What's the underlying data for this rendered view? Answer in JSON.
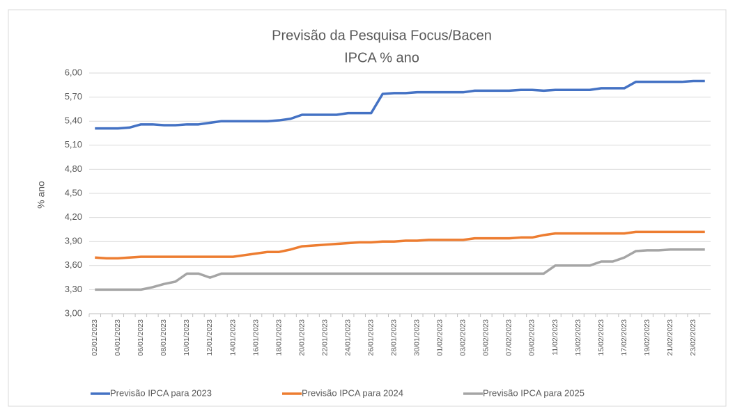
{
  "chart_data": {
    "type": "line",
    "title": "Previsão da Pesquisa Focus/Bacen",
    "subtitle": "IPCA % ano",
    "y_label": "% ano",
    "categories": [
      "02/01/2023",
      null,
      "04/01/2023",
      null,
      "06/01/2023",
      null,
      "08/01/2023",
      null,
      "10/01/2023",
      null,
      "12/01/2023",
      null,
      "14/01/2023",
      null,
      "16/01/2023",
      null,
      "18/01/2023",
      null,
      "20/01/2023",
      null,
      "22/01/2023",
      null,
      "24/01/2023",
      null,
      "26/01/2023",
      null,
      "28/01/2023",
      null,
      "30/01/2023",
      null,
      "01/02/2023",
      null,
      "03/02/2023",
      null,
      "05/02/2023",
      null,
      "07/02/2023",
      null,
      "09/02/2023",
      null,
      "11/02/2023",
      null,
      "13/02/2023",
      null,
      "15/02/2023",
      null,
      "17/02/2023",
      null,
      "19/02/2023",
      null,
      "21/02/2023",
      null,
      "23/02/2023",
      null
    ],
    "series": [
      {
        "name": "Previsão IPCA para 2023",
        "color": "#4472c4",
        "values": [
          5.31,
          5.31,
          5.31,
          5.32,
          5.36,
          5.36,
          5.35,
          5.35,
          5.36,
          5.36,
          5.38,
          5.4,
          5.4,
          5.4,
          5.4,
          5.4,
          5.41,
          5.43,
          5.48,
          5.48,
          5.48,
          5.48,
          5.5,
          5.5,
          5.5,
          5.74,
          5.75,
          5.75,
          5.76,
          5.76,
          5.76,
          5.76,
          5.76,
          5.78,
          5.78,
          5.78,
          5.78,
          5.79,
          5.79,
          5.78,
          5.79,
          5.79,
          5.79,
          5.79,
          5.81,
          5.81,
          5.81,
          5.89,
          5.89,
          5.89,
          5.89,
          5.89,
          5.9,
          5.9
        ]
      },
      {
        "name": "Previsão IPCA para 2024",
        "color": "#ed7d31",
        "values": [
          3.7,
          3.69,
          3.69,
          3.7,
          3.71,
          3.71,
          3.71,
          3.71,
          3.71,
          3.71,
          3.71,
          3.71,
          3.71,
          3.73,
          3.75,
          3.77,
          3.77,
          3.8,
          3.84,
          3.85,
          3.86,
          3.87,
          3.88,
          3.89,
          3.89,
          3.9,
          3.9,
          3.91,
          3.91,
          3.92,
          3.92,
          3.92,
          3.92,
          3.94,
          3.94,
          3.94,
          3.94,
          3.95,
          3.95,
          3.98,
          4.0,
          4.0,
          4.0,
          4.0,
          4.0,
          4.0,
          4.0,
          4.02,
          4.02,
          4.02,
          4.02,
          4.02,
          4.02,
          4.02
        ]
      },
      {
        "name": "Previsão IPCA para 2025",
        "color": "#a5a5a5",
        "values": [
          3.3,
          3.3,
          3.3,
          3.3,
          3.3,
          3.33,
          3.37,
          3.4,
          3.5,
          3.5,
          3.45,
          3.5,
          3.5,
          3.5,
          3.5,
          3.5,
          3.5,
          3.5,
          3.5,
          3.5,
          3.5,
          3.5,
          3.5,
          3.5,
          3.5,
          3.5,
          3.5,
          3.5,
          3.5,
          3.5,
          3.5,
          3.5,
          3.5,
          3.5,
          3.5,
          3.5,
          3.5,
          3.5,
          3.5,
          3.5,
          3.6,
          3.6,
          3.6,
          3.6,
          3.65,
          3.65,
          3.7,
          3.78,
          3.79,
          3.79,
          3.8,
          3.8,
          3.8,
          3.8
        ]
      }
    ],
    "ylim": [
      3,
      6
    ],
    "yticks": [
      {
        "value": 3,
        "label": "3,00"
      },
      {
        "value": 3.3,
        "label": "3,30"
      },
      {
        "value": 3.6,
        "label": "3,60"
      },
      {
        "value": 3.9,
        "label": "3,90"
      },
      {
        "value": 4.2,
        "label": "4,20"
      },
      {
        "value": 4.5,
        "label": "4,50"
      },
      {
        "value": 4.8,
        "label": "4,80"
      },
      {
        "value": 5.1,
        "label": "5,10"
      },
      {
        "value": 5.4,
        "label": "5,40"
      },
      {
        "value": 5.7,
        "label": "5,70"
      },
      {
        "value": 6,
        "label": "6,00"
      }
    ],
    "grid": true,
    "legend": "bottom"
  }
}
